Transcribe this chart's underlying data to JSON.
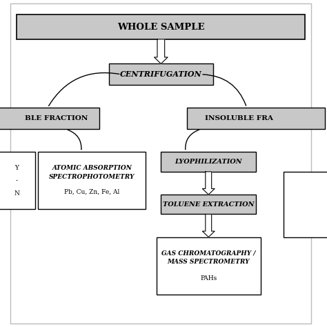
{
  "bg_color": "#ffffff",
  "box_fill_gray": "#c8c8c8",
  "box_fill_white": "#ffffff",
  "title_text": "WHOLE SAMPLE",
  "centrifugation_text": "CENTRIFUGATION",
  "soluble_text": "BLE FRACTION",
  "insoluble_text": "INSOLUBLE FRA",
  "atomic_line1": "ATOMIC ABSORPTION",
  "atomic_line2": "SPECTROPHOTOMETRY",
  "atomic_sub": "Pb, Cu, Zn, Fe, Al",
  "lyoph_text": "LYOPHILIZATION",
  "toluene_text": "TOLUENE EXTRACTION",
  "gc_line1": "GAS CHROMATOGRAPHY /",
  "gc_line2": "MASS SPECTROMETRY",
  "gc_sub": "PAHs",
  "fig_width": 4.74,
  "fig_height": 4.74,
  "dpi": 100
}
